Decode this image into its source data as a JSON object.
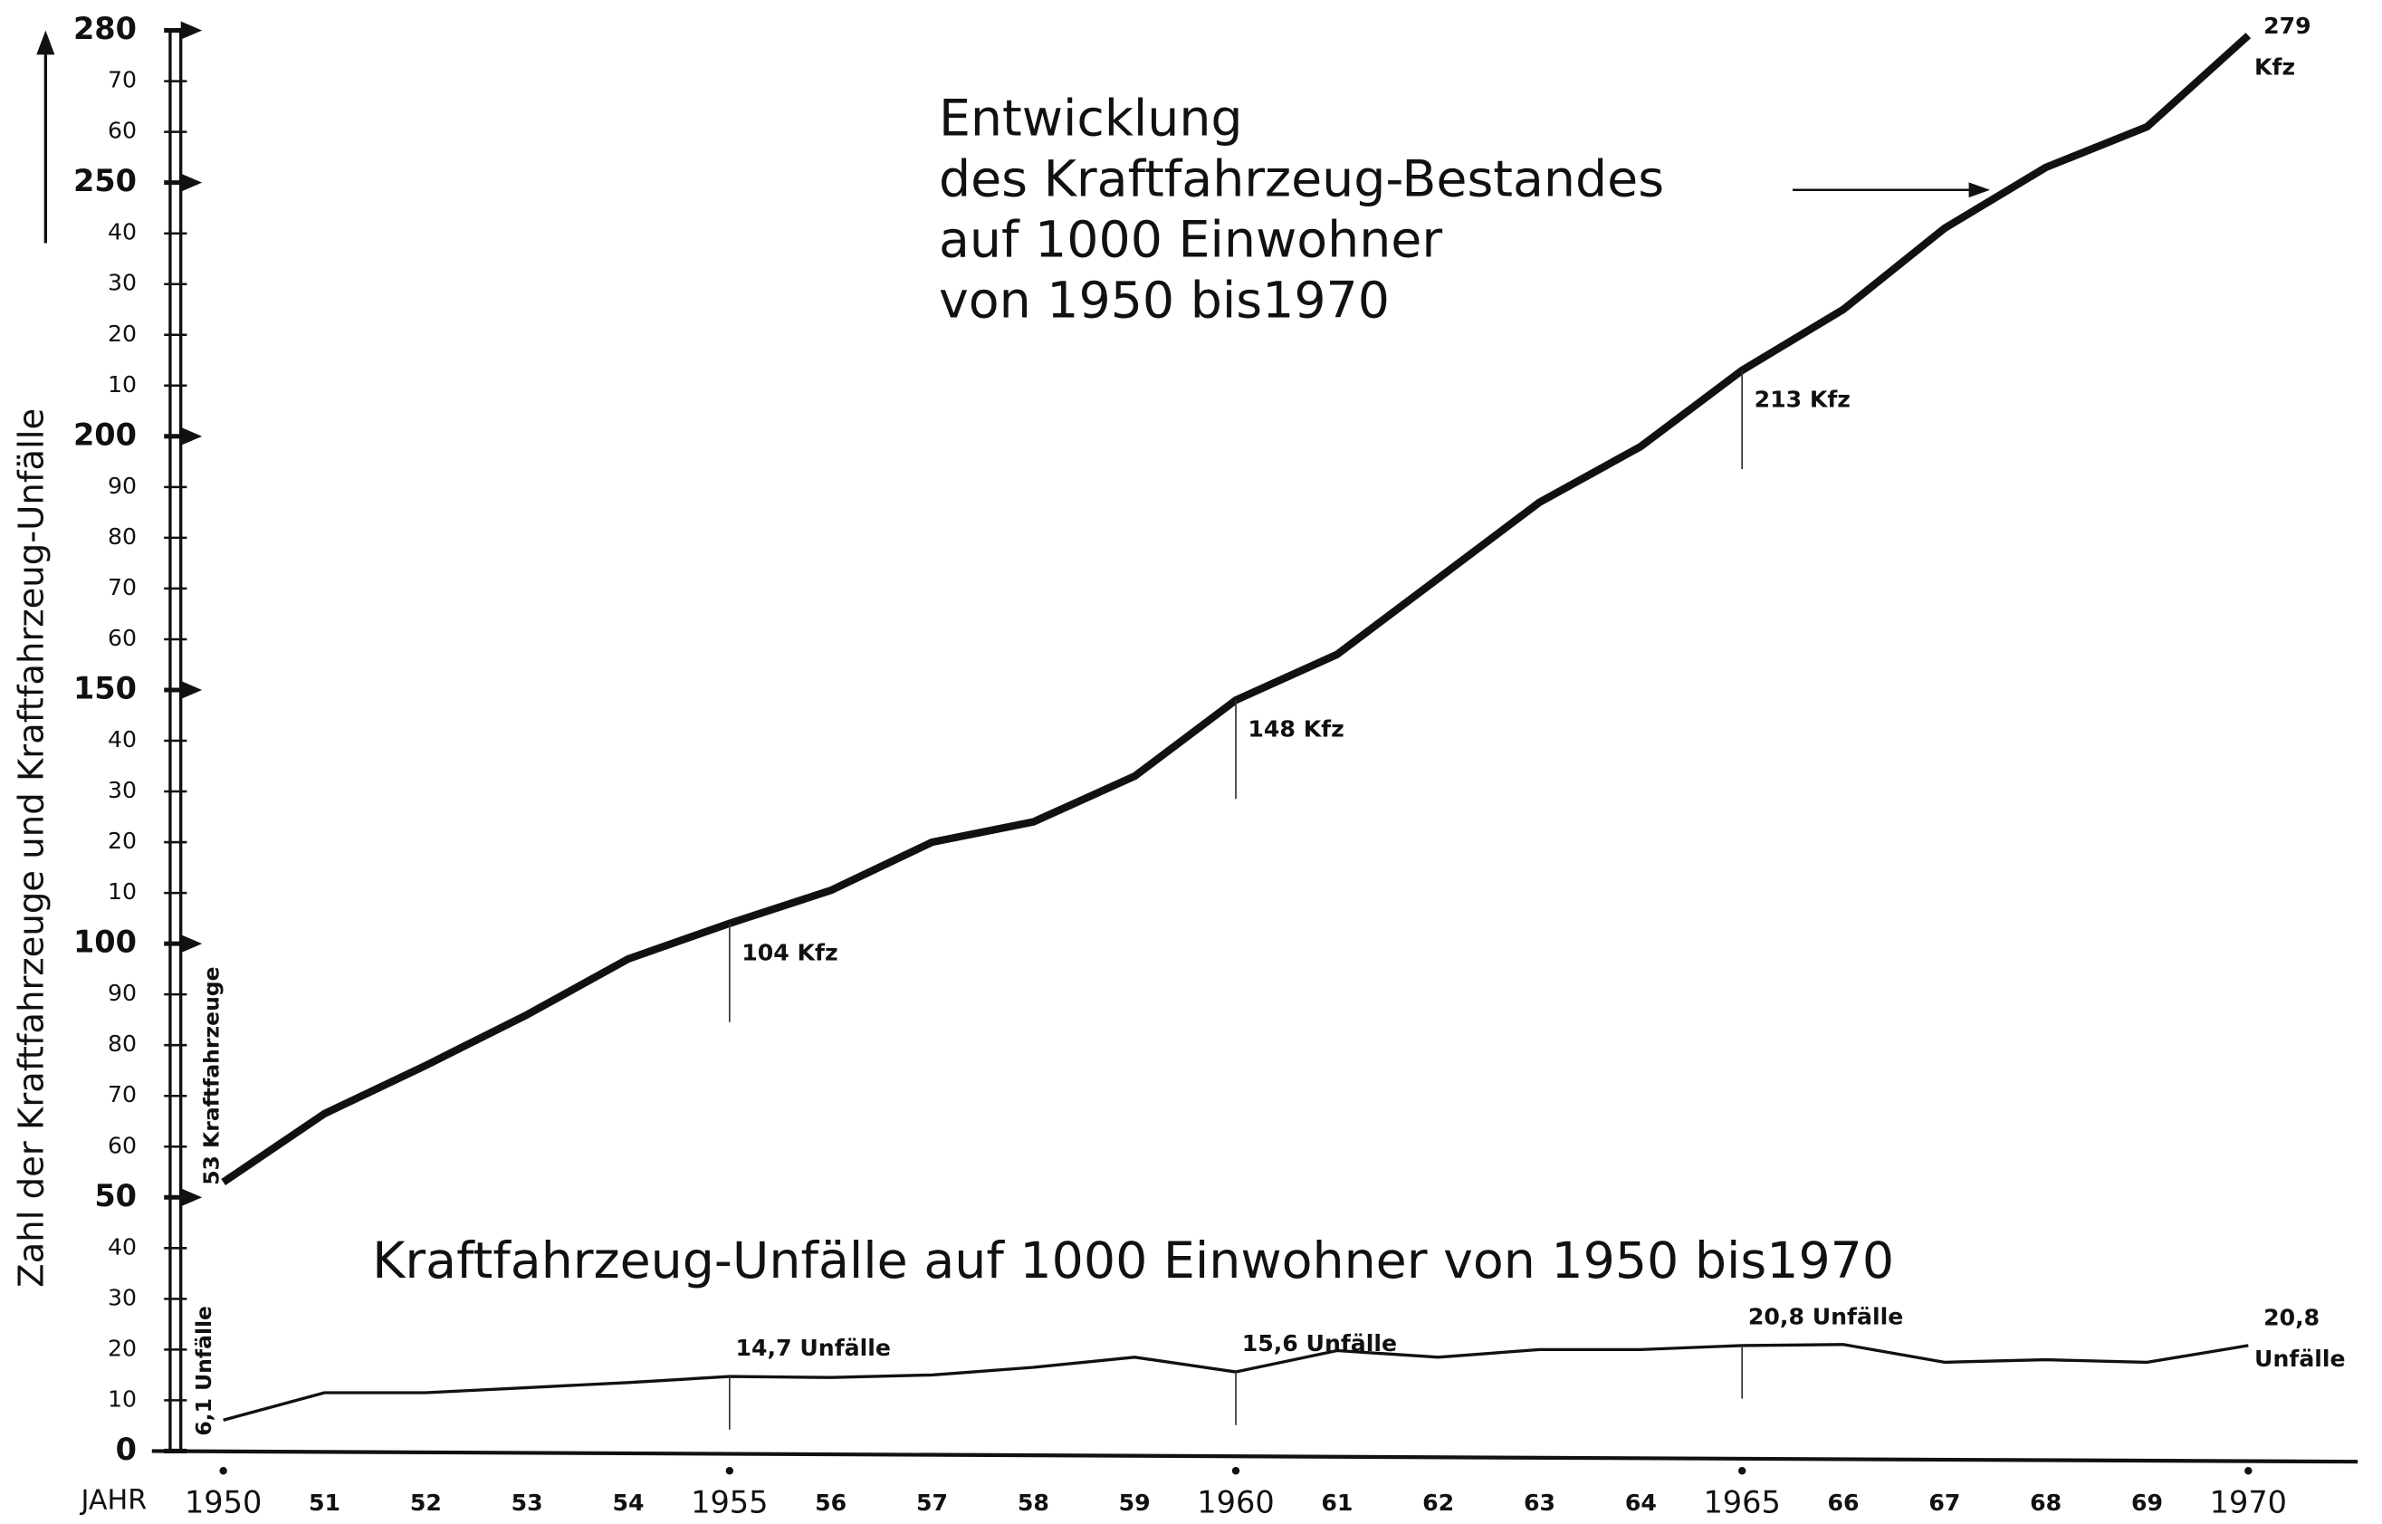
{
  "chart_data": {
    "type": "line",
    "ylabel": "Zahl der Kraftfahrzeuge und Kraftfahrzeug-Unfälle",
    "xlabel": "JAHR",
    "categories": [
      "1950",
      "51",
      "52",
      "53",
      "54",
      "1955",
      "56",
      "57",
      "58",
      "59",
      "1960",
      "61",
      "62",
      "63",
      "64",
      "1965",
      "66",
      "67",
      "68",
      "69",
      "1970"
    ],
    "ylim": [
      0,
      280
    ],
    "yticks": [
      0,
      10,
      20,
      30,
      40,
      50,
      60,
      70,
      80,
      90,
      100,
      {
        "value": 110,
        "label": "10"
      },
      {
        "value": 120,
        "label": "20"
      },
      {
        "value": 130,
        "label": "30"
      },
      {
        "value": 140,
        "label": "40"
      },
      150,
      {
        "value": 160,
        "label": "60"
      },
      {
        "value": 170,
        "label": "70"
      },
      {
        "value": 180,
        "label": "80"
      },
      {
        "value": 190,
        "label": "90"
      },
      200,
      {
        "value": 210,
        "label": "10"
      },
      {
        "value": 220,
        "label": "20"
      },
      {
        "value": 230,
        "label": "30"
      },
      {
        "value": 240,
        "label": "40"
      },
      250,
      {
        "value": 260,
        "label": "60"
      },
      {
        "value": 270,
        "label": "70"
      },
      280
    ],
    "grid": false,
    "series": [
      {
        "name": [
          "Entwicklung",
          "des Kraftfahrzeug-Bestandes",
          "auf 1000 Einwohner",
          "von 1950 bis1970"
        ],
        "color": "#111111",
        "values": [
          53,
          66.5,
          76,
          86,
          97,
          104,
          110.5,
          120,
          124,
          133,
          148,
          157,
          172,
          187,
          198,
          213,
          225,
          241,
          253,
          261,
          279
        ],
        "value_labels": [
          "53 Kraftfahrzeuge",
          null,
          null,
          null,
          null,
          "104 Kfz",
          null,
          null,
          null,
          null,
          "148 Kfz",
          null,
          null,
          null,
          null,
          "213 Kfz",
          null,
          null,
          null,
          null,
          "279 Kfz"
        ]
      },
      {
        "name": [
          "Kraftfahrzeug-Unfälle auf 1000 Einwohner von 1950 bis1970"
        ],
        "color": "#111111",
        "values": [
          6.1,
          11.5,
          11.5,
          12.5,
          13.5,
          14.7,
          14.5,
          15,
          16.5,
          18.5,
          15.6,
          19.8,
          18.5,
          20,
          20,
          20.8,
          21,
          17.5,
          18,
          17.5,
          20.8
        ],
        "value_labels": [
          "6,1 Unfälle",
          null,
          null,
          null,
          null,
          "14,7 Unfälle",
          null,
          null,
          null,
          null,
          "15,6 Unfälle",
          null,
          null,
          null,
          null,
          "20,8 Unfälle",
          null,
          null,
          null,
          null,
          "20,8 Unfälle"
        ]
      }
    ]
  }
}
